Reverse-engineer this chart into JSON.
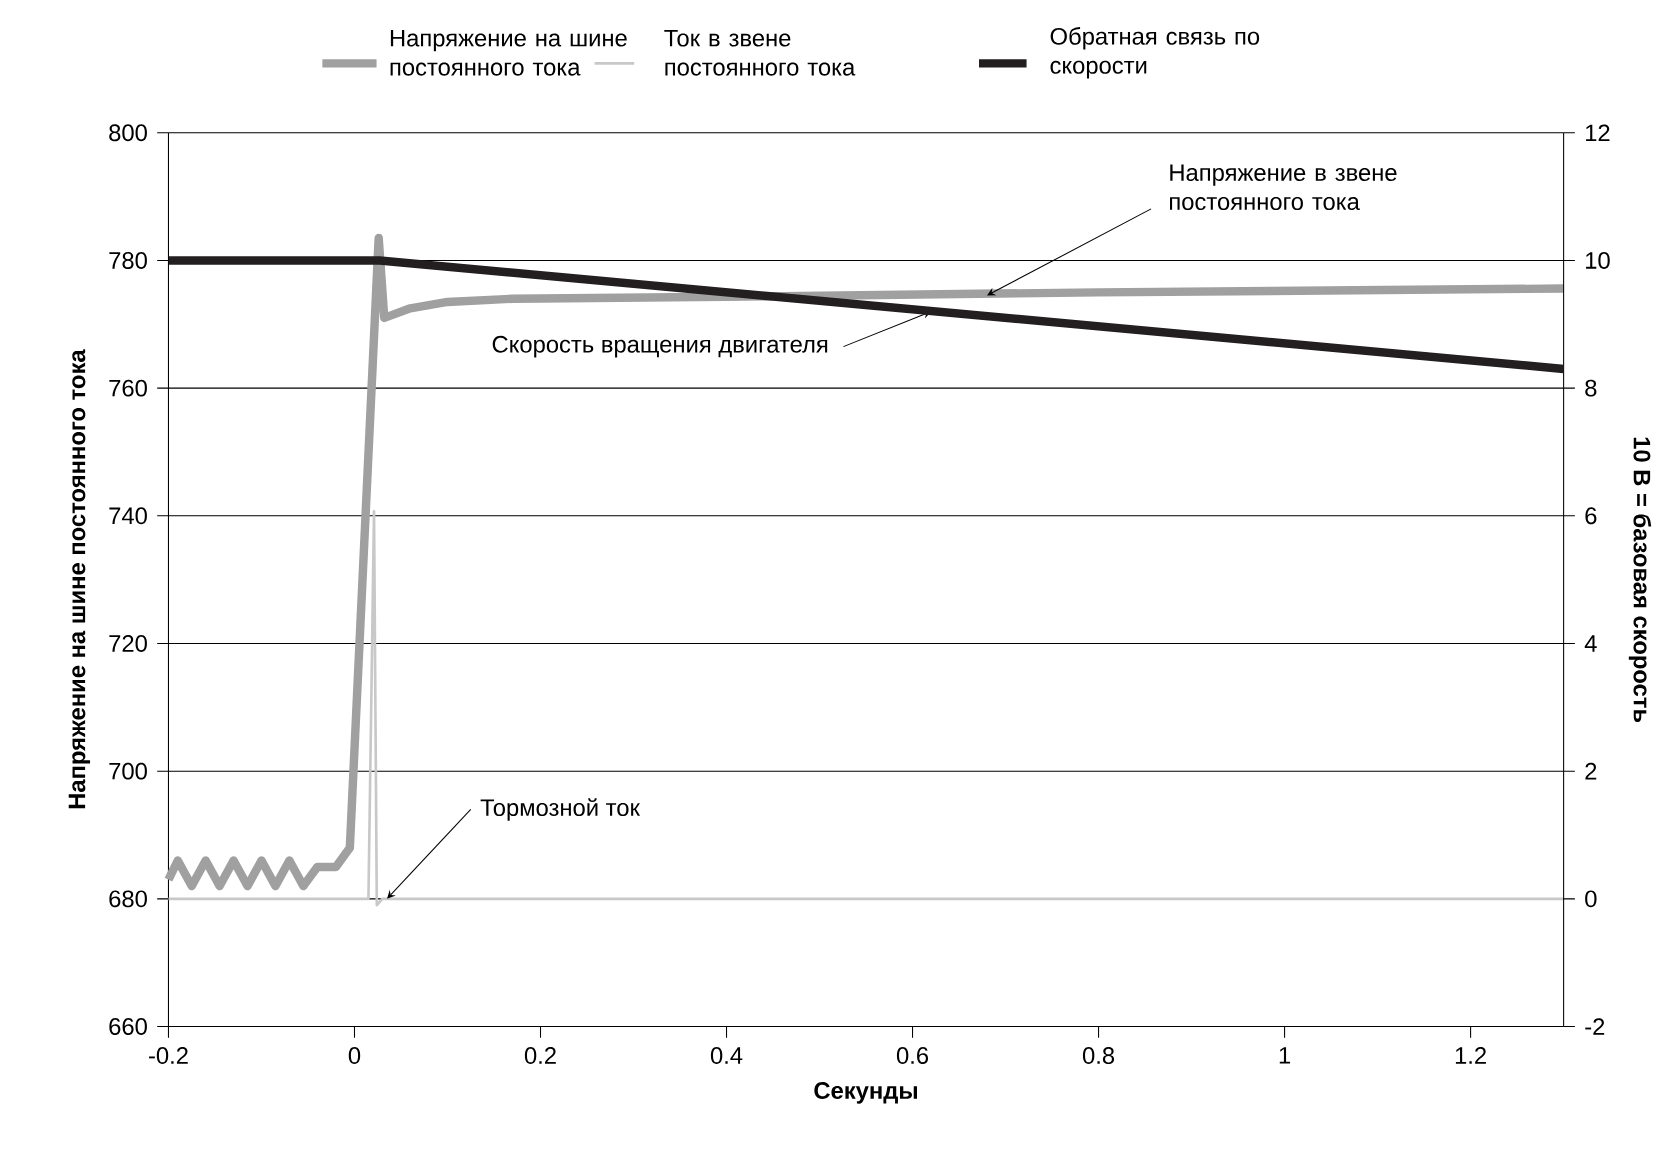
{
  "chart_data": {
    "type": "line",
    "xlabel": "Секунды",
    "ylabel": "Напряжение на шине постоянного тока",
    "y2label": "10 В = базовая скорость",
    "xlim": [
      -0.2,
      1.3
    ],
    "xticks": [
      -0.2,
      0,
      0.2,
      0.4,
      0.6,
      0.8,
      1,
      1.2
    ],
    "ylim": [
      660,
      800
    ],
    "yticks": [
      660,
      680,
      700,
      720,
      740,
      760,
      780,
      800
    ],
    "y2lim": [
      -2,
      12
    ],
    "y2ticks": [
      -2,
      0,
      2,
      4,
      6,
      8,
      10,
      12
    ],
    "grid": "y",
    "legend": "top",
    "line_style": "solid",
    "marker": "none",
    "series": [
      {
        "name": "Напряжение на шине постоянного тока",
        "color": "#a0a0a0",
        "x": [
          -0.2,
          -0.19,
          -0.175,
          -0.16,
          -0.145,
          -0.13,
          -0.115,
          -0.1,
          -0.085,
          -0.07,
          -0.055,
          -0.04,
          -0.02,
          -0.005,
          0.026,
          0.032,
          0.06,
          0.1,
          0.17,
          0.4,
          0.8,
          1.3
        ],
        "values": [
          683,
          686,
          682,
          686,
          682,
          686,
          682,
          686,
          682,
          686,
          682,
          685,
          685,
          688,
          783.5,
          771,
          772.5,
          773.5,
          774,
          774.3,
          775,
          775.6
        ]
      },
      {
        "name": "Ток в звене постоянного тока",
        "color": "#c8c8c8",
        "x": [
          -0.2,
          0.015,
          0.021,
          0.024,
          0.03,
          1.3
        ],
        "values": [
          680,
          680,
          740.7,
          679,
          680,
          680
        ]
      },
      {
        "name": "Обратная связь по скорости",
        "color": "#231f20",
        "axis": "y2",
        "x": [
          -0.2,
          0.027,
          1.3
        ],
        "values": [
          10,
          10,
          8.3
        ]
      }
    ],
    "annotations": [
      {
        "text": "Напряжение в звене постоянного тока",
        "x": 0.68,
        "y": 774.5
      },
      {
        "text": "Скорость вращения двигателя",
        "x": 0.62,
        "y": 772
      },
      {
        "text": "Тормозной ток",
        "x": 0.035,
        "y": 680
      }
    ]
  }
}
